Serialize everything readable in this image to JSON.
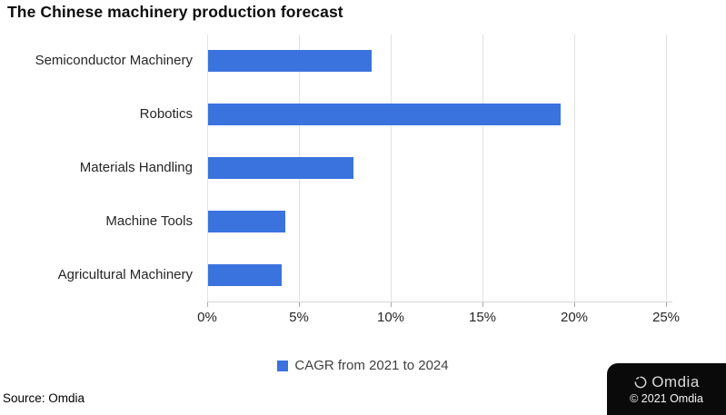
{
  "chart_data": {
    "type": "bar",
    "orientation": "horizontal",
    "title": "The Chinese machinery production forecast",
    "categories": [
      "Semiconductor Machinery",
      "Robotics",
      "Materials Handling",
      "Machine Tools",
      "Agricultural Machinery"
    ],
    "values": [
      8.9,
      19.2,
      7.9,
      4.2,
      4.0
    ],
    "unit": "%",
    "series_name": "CAGR from 2021 to 2024",
    "legend": "CAGR from 2021 to 2024",
    "legend_position": "bottom",
    "xlabel": "",
    "ylabel": "",
    "xlim": [
      0,
      25
    ],
    "xticks": [
      {
        "label": "0%",
        "value": 0
      },
      {
        "label": "5%",
        "value": 5
      },
      {
        "label": "10%",
        "value": 10
      },
      {
        "label": "15%",
        "value": 15
      },
      {
        "label": "20%",
        "value": 20
      },
      {
        "label": "25%",
        "value": 25
      }
    ],
    "grid": "vertical-only",
    "bar_color": "#3a73dd"
  },
  "footer": {
    "source": "Source: Omdia",
    "logo_text": "Omdia",
    "copyright": "© 2021 Omdia"
  }
}
